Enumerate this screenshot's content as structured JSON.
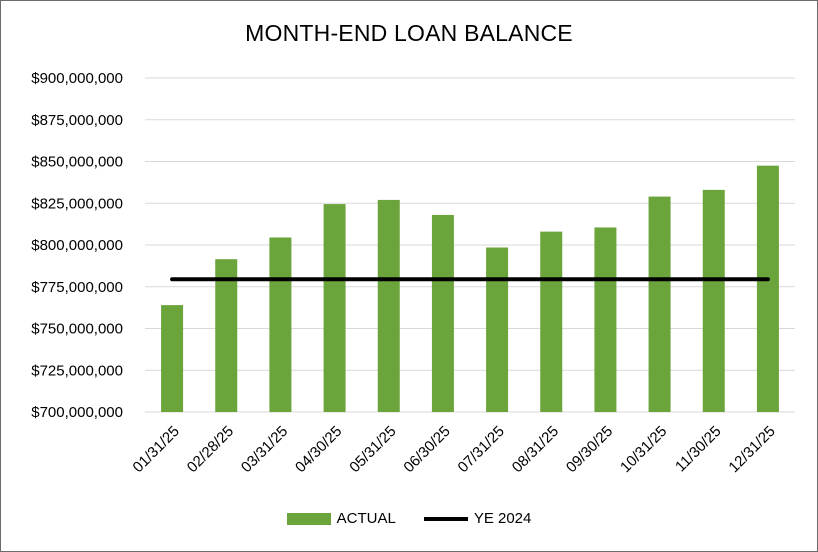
{
  "chart_data": {
    "type": "bar",
    "title": "MONTH-END LOAN BALANCE",
    "xlabel": "",
    "ylabel": "",
    "categories": [
      "01/31/25",
      "02/28/25",
      "03/31/25",
      "04/30/25",
      "05/31/25",
      "06/30/25",
      "07/31/25",
      "08/31/25",
      "09/30/25",
      "10/31/25",
      "11/30/25",
      "12/31/25"
    ],
    "series": [
      {
        "name": "ACTUAL",
        "type": "bar",
        "color": "#6aa43a",
        "values": [
          764000000,
          791500000,
          804500000,
          824500000,
          827000000,
          818000000,
          798500000,
          808000000,
          810500000,
          829000000,
          833000000,
          847500000
        ]
      },
      {
        "name": "YE 2024",
        "type": "line",
        "color": "#000000",
        "values": [
          779500000,
          779500000,
          779500000,
          779500000,
          779500000,
          779500000,
          779500000,
          779500000,
          779500000,
          779500000,
          779500000,
          779500000
        ]
      }
    ],
    "ylim": [
      700000000,
      900000000
    ],
    "ytick_values": [
      700000000,
      725000000,
      750000000,
      775000000,
      800000000,
      825000000,
      850000000,
      875000000,
      900000000
    ],
    "ytick_labels": [
      "$700,000,000",
      "$725,000,000",
      "$750,000,000",
      "$775,000,000",
      "$800,000,000",
      "$825,000,000",
      "$850,000,000",
      "$875,000,000",
      "$900,000,000"
    ],
    "grid": true,
    "gridline_color": "#d9d9d9",
    "legend_position": "bottom"
  }
}
